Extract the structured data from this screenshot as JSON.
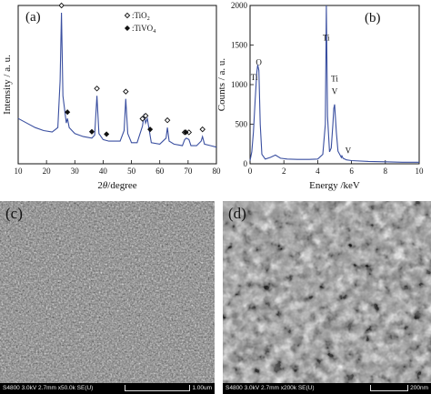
{
  "panels": {
    "a": {
      "tag": "(a)",
      "xlabel_prefix": "2",
      "xlabel_theta": "θ",
      "xlabel_suffix": "/degree",
      "ylabel": "Intensity / a. u.",
      "legend": [
        {
          "marker": "open-diamond",
          "text": ":TiO",
          "sub": "2"
        },
        {
          "marker": "filled-diamond",
          "text": ":TiVO",
          "sub": "4"
        }
      ]
    },
    "b": {
      "tag": "(b)",
      "xlabel": "Energy /keV",
      "ylabel": "Counts / a. u.",
      "annotations": [
        {
          "text": "O",
          "x": 0.52,
          "y": 1250
        },
        {
          "text": "Ti",
          "x": 0.25,
          "y": 1060
        },
        {
          "text": "Ti",
          "x": 4.5,
          "y": 1560
        },
        {
          "text": "Ti",
          "x": 5.0,
          "y": 1040
        },
        {
          "text": "V",
          "x": 5.0,
          "y": 880
        },
        {
          "text": "V",
          "x": 5.8,
          "y": 130
        }
      ]
    },
    "c": {
      "tag": "(c)",
      "info": "S4800 3.0kV 2.7mm x50.0k SE(U)",
      "scale": "1.00um"
    },
    "d": {
      "tag": "(d)",
      "info": "S4800 3.0kV 2.7mm x200k SE(U)",
      "scale": "200nm"
    }
  },
  "chart_data": [
    {
      "type": "line",
      "panel": "a",
      "xlabel": "2θ/degree",
      "ylabel": "Intensity / a. u.",
      "xlim": [
        10,
        80
      ],
      "x_ticks": [
        10,
        20,
        30,
        40,
        50,
        60,
        70,
        80
      ],
      "y_ticks_shown": false,
      "line_color": "#3a4fa0",
      "series": [
        {
          "x": [
            10,
            13,
            16,
            19,
            22,
            24,
            24.8,
            25.3,
            25.8,
            27,
            27.4,
            28,
            30,
            33,
            36,
            37.0,
            37.8,
            38.5,
            40,
            42,
            44,
            46,
            47.4,
            48.0,
            48.7,
            50,
            52,
            53.9,
            54.5,
            55.0,
            55.6,
            57,
            60,
            62.2,
            62.7,
            63.3,
            65,
            68,
            68.8,
            69.4,
            70.3,
            71,
            73,
            74.6,
            75.1,
            75.8,
            78,
            80
          ],
          "y": [
            0.3,
            0.27,
            0.24,
            0.22,
            0.21,
            0.24,
            0.55,
            1.0,
            0.45,
            0.27,
            0.3,
            0.24,
            0.2,
            0.18,
            0.17,
            0.19,
            0.45,
            0.2,
            0.16,
            0.15,
            0.15,
            0.15,
            0.22,
            0.43,
            0.2,
            0.14,
            0.14,
            0.25,
            0.33,
            0.27,
            0.3,
            0.14,
            0.13,
            0.17,
            0.24,
            0.15,
            0.13,
            0.12,
            0.16,
            0.17,
            0.16,
            0.12,
            0.12,
            0.15,
            0.18,
            0.13,
            0.12,
            0.11
          ]
        }
      ],
      "tio2_peaks": [
        25.3,
        37.8,
        48.0,
        53.9,
        55.0,
        62.7,
        68.8,
        70.3,
        75.1
      ],
      "tivo4_peaks": [
        27.4,
        36.0,
        41.2,
        56.6,
        69.2
      ]
    },
    {
      "type": "line",
      "panel": "b",
      "xlabel": "Energy /keV",
      "ylabel": "Counts / a. u.",
      "xlim": [
        0,
        10
      ],
      "ylim": [
        0,
        2000
      ],
      "x_ticks": [
        0,
        2,
        4,
        6,
        8,
        10
      ],
      "y_ticks": [
        0,
        500,
        1000,
        1500,
        2000
      ],
      "line_color": "#3a4fa0",
      "series": [
        {
          "x": [
            0,
            0.1,
            0.2,
            0.3,
            0.4,
            0.45,
            0.52,
            0.6,
            0.7,
            0.9,
            1.2,
            1.5,
            1.8,
            2.2,
            2.8,
            3.5,
            4.0,
            4.3,
            4.45,
            4.51,
            4.58,
            4.7,
            4.8,
            4.9,
            4.95,
            5.0,
            5.1,
            5.2,
            5.4,
            5.43,
            5.5,
            5.7,
            6.0,
            7.0,
            8.0,
            9.0,
            10.0
          ],
          "y": [
            40,
            150,
            400,
            800,
            1150,
            1250,
            1180,
            500,
            120,
            60,
            80,
            110,
            70,
            60,
            55,
            55,
            60,
            120,
            500,
            2000,
            600,
            150,
            200,
            500,
            700,
            750,
            400,
            160,
            80,
            100,
            70,
            50,
            40,
            30,
            25,
            20,
            20
          ]
        }
      ]
    }
  ]
}
